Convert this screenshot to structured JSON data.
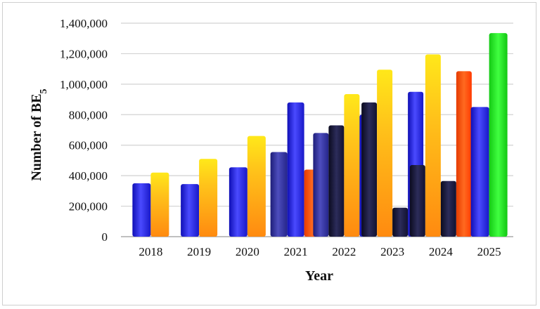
{
  "chart_data": {
    "type": "bar",
    "xlabel": "Year",
    "ylabel_main": "Number of BE",
    "ylabel_sub": "5",
    "ylim": [
      0,
      1400000
    ],
    "yticks": [
      0,
      200000,
      400000,
      600000,
      800000,
      1000000,
      1200000,
      1400000
    ],
    "ytick_labels": [
      "0",
      "200,000",
      "400,000",
      "600,000",
      "800,000",
      "1,000,000",
      "1,200,000",
      "1,400,000"
    ],
    "categories": [
      "2018",
      "2019",
      "2020",
      "2021",
      "2022",
      "2023",
      "2024",
      "2025"
    ],
    "grid": "horizontal",
    "colors": {
      "blue": "#1f1fd8",
      "dark_blue": "#2a2a9a",
      "navy": "#1a1a3a",
      "orange": "#ff9a1a",
      "yellow_orange": "#ffd21a",
      "red_orange": "#ff4a10",
      "green": "#1ee21e"
    },
    "bars": [
      {
        "category": "2018",
        "value": 350000,
        "color": "blue"
      },
      {
        "category": "2018",
        "value": 420000,
        "color": "yellow_orange"
      },
      {
        "category": "2019",
        "value": 345000,
        "color": "blue"
      },
      {
        "category": "2019",
        "value": 510000,
        "color": "yellow_orange"
      },
      {
        "category": "2020",
        "value": 455000,
        "color": "blue"
      },
      {
        "category": "2020",
        "value": 660000,
        "color": "yellow_orange"
      },
      {
        "category": "2021",
        "value": 555000,
        "color": "dark_blue"
      },
      {
        "category": "2021",
        "value": 880000,
        "color": "blue"
      },
      {
        "category": "2021",
        "value": 440000,
        "color": "red_orange"
      },
      {
        "category": "2022",
        "value": 680000,
        "color": "dark_blue"
      },
      {
        "category": "2022",
        "value": 730000,
        "color": "navy"
      },
      {
        "category": "2022",
        "value": 935000,
        "color": "yellow_orange"
      },
      {
        "category": "2022",
        "value": 800000,
        "color": "blue"
      },
      {
        "category": "2023",
        "value": 880000,
        "color": "navy"
      },
      {
        "category": "2023",
        "value": 1095000,
        "color": "yellow_orange"
      },
      {
        "category": "2023",
        "value": 190000,
        "color": "navy"
      },
      {
        "category": "2023",
        "value": 950000,
        "color": "blue"
      },
      {
        "category": "2024",
        "value": 470000,
        "color": "navy"
      },
      {
        "category": "2024",
        "value": 1195000,
        "color": "yellow_orange"
      },
      {
        "category": "2024",
        "value": 365000,
        "color": "navy"
      },
      {
        "category": "2024",
        "value": 1085000,
        "color": "red_orange"
      },
      {
        "category": "2025",
        "value": 850000,
        "color": "blue"
      },
      {
        "category": "2025",
        "value": 1335000,
        "color": "green"
      }
    ]
  }
}
